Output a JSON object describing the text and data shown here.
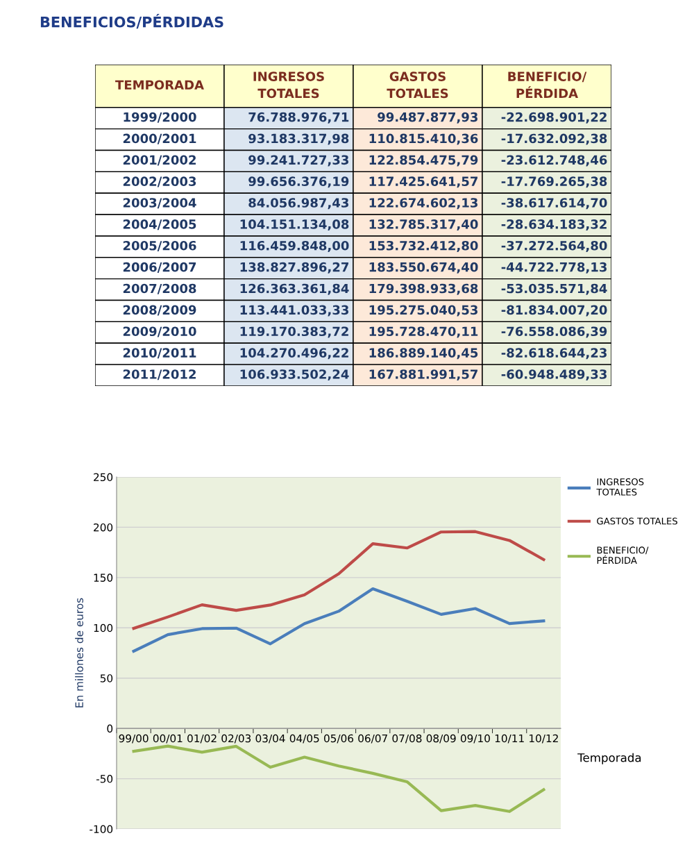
{
  "chart_data": [
    {
      "type": "other",
      "title": "BENEFICIOS/PÉRDIDAS",
      "xlabel": "TEMPORADA",
      "categories": [
        "1999/2000",
        "2000/2001",
        "2001/2002",
        "2002/2003",
        "2003/2004",
        "2004/2005",
        "2005/2006",
        "2006/2007",
        "2007/2008",
        "2008/2009",
        "2009/2010",
        "2010/2011",
        "2011/2012"
      ],
      "series": [
        {
          "name": "INGRESOS\nTOTALES",
          "values": [
            76788976.71,
            93183317.98,
            99241727.33,
            99656376.19,
            84056987.43,
            104151134.08,
            116459848.0,
            138827896.27,
            126363361.84,
            113441033.33,
            119170383.72,
            104270496.22,
            106933502.24
          ],
          "value_labels": [
            "76.788.976,71",
            "93.183.317,98",
            "99.241.727,33",
            "99.656.376,19",
            "84.056.987,43",
            "104.151.134,08",
            "116.459.848,00",
            "138.827.896,27",
            "126.363.361,84",
            "113.441.033,33",
            "119.170.383,72",
            "104.270.496,22",
            "106.933.502,24"
          ]
        },
        {
          "name": "GASTOS\nTOTALES",
          "values": [
            99487877.93,
            110815410.36,
            122854475.79,
            117425641.57,
            122674602.13,
            132785317.4,
            153732412.8,
            183550674.4,
            179398933.68,
            195275040.53,
            195728470.11,
            186889140.45,
            167881991.57
          ],
          "value_labels": [
            "99.487.877,93",
            "110.815.410,36",
            "122.854.475,79",
            "117.425.641,57",
            "122.674.602,13",
            "132.785.317,40",
            "153.732.412,80",
            "183.550.674,40",
            "179.398.933,68",
            "195.275.040,53",
            "195.728.470,11",
            "186.889.140,45",
            "167.881.991,57"
          ]
        },
        {
          "name": "BENEFICIO/\nPÉRDIDA",
          "values": [
            -22698901.22,
            -17632092.38,
            -23612748.46,
            -17769265.38,
            -38617614.7,
            -28634183.32,
            -37272564.8,
            -44722778.13,
            -53035571.84,
            -81834007.2,
            -76558086.39,
            -82618644.23,
            -60948489.33
          ],
          "value_labels": [
            "-22.698.901,22",
            "-17.632.092,38",
            "-23.612.748,46",
            "-17.769.265,38",
            "-38.617.614,70",
            "-28.634.183,32",
            "-37.272.564,80",
            "-44.722.778,13",
            "-53.035.571,84",
            "-81.834.007,20",
            "-76.558.086,39",
            "-82.618.644,23",
            "-60.948.489,33"
          ]
        }
      ]
    },
    {
      "type": "line",
      "xlabel": "Temporada",
      "ylabel": "En millones de euros",
      "categories": [
        "99/00",
        "00/01",
        "01/02",
        "02/03",
        "03/04",
        "04/05",
        "05/06",
        "06/07",
        "07/08",
        "08/09",
        "09/10",
        "10/11",
        "10/12"
      ],
      "series": [
        {
          "name": "INGRESOS\nTOTALES",
          "color": "#4a7ebb",
          "values": [
            76.8,
            93.2,
            99.2,
            99.7,
            84.1,
            104.2,
            116.5,
            138.8,
            126.4,
            113.4,
            119.2,
            104.3,
            106.9
          ]
        },
        {
          "name": "GASTOS TOTALES",
          "color": "#be4b48",
          "values": [
            99.5,
            110.8,
            122.9,
            117.4,
            122.7,
            132.8,
            153.7,
            183.6,
            179.4,
            195.3,
            195.7,
            186.9,
            167.9
          ]
        },
        {
          "name": "BENEFICIO/\nPÉRDIDA",
          "color": "#98b954",
          "values": [
            -22.7,
            -17.6,
            -23.6,
            -17.8,
            -38.6,
            -28.6,
            -37.3,
            -44.7,
            -53.0,
            -81.8,
            -76.6,
            -82.6,
            -60.9
          ]
        }
      ],
      "ylim": [
        -100,
        250
      ],
      "yticks": [
        -100,
        -50,
        0,
        50,
        100,
        150,
        200,
        250
      ],
      "grid": "y",
      "legend": "top right",
      "marker": "none",
      "line_style": "solid"
    }
  ]
}
